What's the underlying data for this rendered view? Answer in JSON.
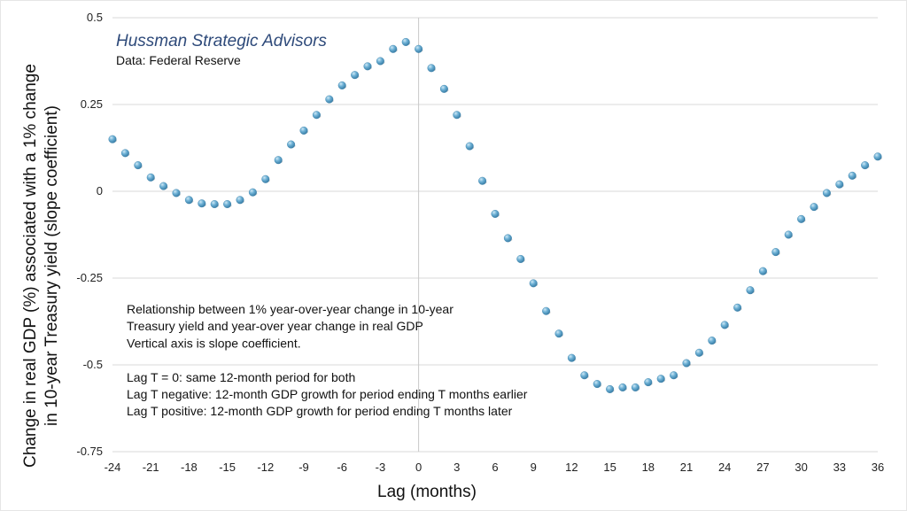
{
  "chart_data": {
    "type": "scatter",
    "title": "",
    "brand": "Hussman Strategic Advisors",
    "source": "Data: Federal Reserve",
    "xlabel": "Lag (months)",
    "ylabel_lines": [
      "Change in real GDP (%) associated with a 1% change",
      "in 10-year Treasury yield (slope coefficient)"
    ],
    "xlim": [
      -24,
      36
    ],
    "ylim": [
      -0.75,
      0.5
    ],
    "x_ticks": [
      -24,
      -21,
      -18,
      -15,
      -12,
      -9,
      -6,
      -3,
      0,
      3,
      6,
      9,
      12,
      15,
      18,
      21,
      24,
      27,
      30,
      33,
      36
    ],
    "y_ticks": [
      {
        "value": 0.5,
        "label": "0.5"
      },
      {
        "value": 0.25,
        "label": "0.25"
      },
      {
        "value": 0,
        "label": "0"
      },
      {
        "value": -0.25,
        "label": "-0.25"
      },
      {
        "value": -0.5,
        "label": "-0.5"
      },
      {
        "value": -0.75,
        "label": "-0.75"
      }
    ],
    "grid": "horizontal",
    "marker_color": "#5ea3c9",
    "series": [
      {
        "points": [
          [
            -24,
            0.15
          ],
          [
            -23,
            0.11
          ],
          [
            -22,
            0.075
          ],
          [
            -21,
            0.04
          ],
          [
            -20,
            0.015
          ],
          [
            -19,
            -0.005
          ],
          [
            -18,
            -0.025
          ],
          [
            -17,
            -0.035
          ],
          [
            -16,
            -0.037
          ],
          [
            -15,
            -0.037
          ],
          [
            -14,
            -0.025
          ],
          [
            -13,
            -0.003
          ],
          [
            -12,
            0.035
          ],
          [
            -11,
            0.09
          ],
          [
            -10,
            0.135
          ],
          [
            -9,
            0.175
          ],
          [
            -8,
            0.22
          ],
          [
            -7,
            0.265
          ],
          [
            -6,
            0.305
          ],
          [
            -5,
            0.335
          ],
          [
            -4,
            0.36
          ],
          [
            -3,
            0.375
          ],
          [
            -2,
            0.41
          ],
          [
            -1,
            0.43
          ],
          [
            0,
            0.41
          ],
          [
            1,
            0.355
          ],
          [
            2,
            0.295
          ],
          [
            3,
            0.22
          ],
          [
            4,
            0.13
          ],
          [
            5,
            0.03
          ],
          [
            6,
            -0.065
          ],
          [
            7,
            -0.135
          ],
          [
            8,
            -0.195
          ],
          [
            9,
            -0.265
          ],
          [
            10,
            -0.345
          ],
          [
            11,
            -0.41
          ],
          [
            12,
            -0.48
          ],
          [
            13,
            -0.53
          ],
          [
            14,
            -0.555
          ],
          [
            15,
            -0.57
          ],
          [
            16,
            -0.565
          ],
          [
            17,
            -0.565
          ],
          [
            18,
            -0.55
          ],
          [
            19,
            -0.54
          ],
          [
            20,
            -0.53
          ],
          [
            21,
            -0.495
          ],
          [
            22,
            -0.465
          ],
          [
            23,
            -0.43
          ],
          [
            24,
            -0.385
          ],
          [
            25,
            -0.335
          ],
          [
            26,
            -0.285
          ],
          [
            27,
            -0.23
          ],
          [
            28,
            -0.175
          ],
          [
            29,
            -0.125
          ],
          [
            30,
            -0.08
          ],
          [
            31,
            -0.045
          ],
          [
            32,
            -0.005
          ],
          [
            33,
            0.02
          ],
          [
            34,
            0.045
          ],
          [
            35,
            0.075
          ],
          [
            36,
            0.1
          ]
        ]
      }
    ],
    "annotation_lines": [
      "Relationship between 1% year-over-year change in 10-year",
      "Treasury yield and year-over year change in real GDP",
      "Vertical axis is slope coefficient.",
      "",
      "Lag T = 0: same 12-month period for both",
      "Lag T negative: 12-month GDP growth for period ending T months earlier",
      "Lag T positive: 12-month GDP growth for period ending T months later"
    ]
  }
}
